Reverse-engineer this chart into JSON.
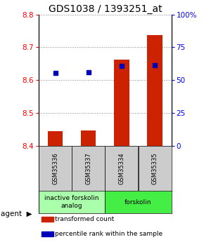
{
  "title": "GDS1038 / 1393251_at",
  "samples": [
    "GSM35336",
    "GSM35337",
    "GSM35334",
    "GSM35335"
  ],
  "red_values": [
    8.445,
    8.447,
    8.663,
    8.737
  ],
  "blue_values": [
    8.623,
    8.625,
    8.643,
    8.645
  ],
  "ylim_left": [
    8.4,
    8.8
  ],
  "ylim_right": [
    0,
    100
  ],
  "yticks_left": [
    8.4,
    8.5,
    8.6,
    8.7,
    8.8
  ],
  "yticks_right": [
    0,
    25,
    50,
    75,
    100
  ],
  "ytick_labels_right": [
    "0",
    "25",
    "50",
    "75",
    "100%"
  ],
  "bar_bottom": 8.4,
  "groups": [
    {
      "label": "inactive forskolin\nanalog",
      "color": "#aaffaa",
      "span": [
        0,
        2
      ]
    },
    {
      "label": "forskolin",
      "color": "#44ee44",
      "span": [
        2,
        4
      ]
    }
  ],
  "legend_items": [
    {
      "color": "#cc2200",
      "label": "transformed count"
    },
    {
      "color": "#0000bb",
      "label": "percentile rank within the sample"
    }
  ],
  "bar_color": "#cc2200",
  "dot_color": "#0000bb",
  "grid_color": "#888888",
  "title_fontsize": 10,
  "tick_fontsize": 7.5,
  "sample_fontsize": 6,
  "group_fontsize": 6.5,
  "legend_fontsize": 6.5
}
